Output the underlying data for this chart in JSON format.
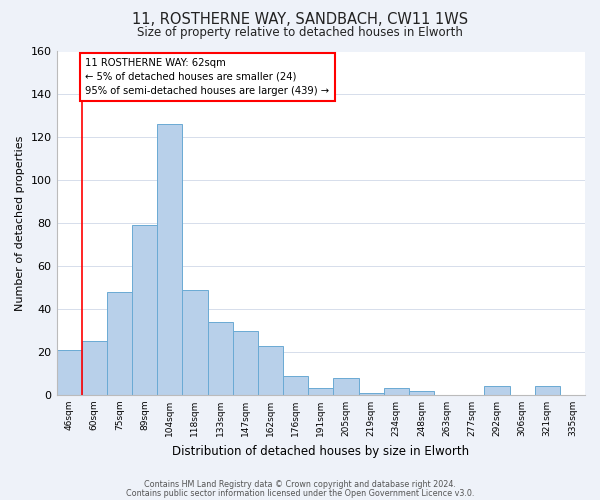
{
  "title_line1": "11, ROSTHERNE WAY, SANDBACH, CW11 1WS",
  "title_line2": "Size of property relative to detached houses in Elworth",
  "xlabel": "Distribution of detached houses by size in Elworth",
  "ylabel": "Number of detached properties",
  "bin_labels": [
    "46sqm",
    "60sqm",
    "75sqm",
    "89sqm",
    "104sqm",
    "118sqm",
    "133sqm",
    "147sqm",
    "162sqm",
    "176sqm",
    "191sqm",
    "205sqm",
    "219sqm",
    "234sqm",
    "248sqm",
    "263sqm",
    "277sqm",
    "292sqm",
    "306sqm",
    "321sqm",
    "335sqm"
  ],
  "bar_values": [
    21,
    25,
    48,
    79,
    126,
    49,
    34,
    30,
    23,
    9,
    3,
    8,
    1,
    3,
    2,
    0,
    0,
    4,
    0,
    4,
    0
  ],
  "bar_color": "#b8d0ea",
  "bar_edge_color": "#6aaad4",
  "ylim": [
    0,
    160
  ],
  "yticks": [
    0,
    20,
    40,
    60,
    80,
    100,
    120,
    140,
    160
  ],
  "property_line_x": 1.0,
  "annotation_text_line1": "11 ROSTHERNE WAY: 62sqm",
  "annotation_text_line2": "← 5% of detached houses are smaller (24)",
  "annotation_text_line3": "95% of semi-detached houses are larger (439) →",
  "footer_line1": "Contains HM Land Registry data © Crown copyright and database right 2024.",
  "footer_line2": "Contains public sector information licensed under the Open Government Licence v3.0.",
  "background_color": "#eef2f9",
  "plot_bg_color": "#ffffff"
}
